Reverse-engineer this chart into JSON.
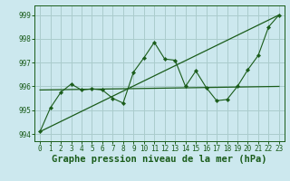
{
  "title": "Graphe pression niveau de la mer (hPa)",
  "bg_color": "#cce8ee",
  "grid_color": "#aacccc",
  "line_color": "#1a5c1a",
  "xlim": [
    -0.5,
    23.5
  ],
  "ylim": [
    993.7,
    999.4
  ],
  "yticks": [
    994,
    995,
    996,
    997,
    998,
    999
  ],
  "xticks": [
    0,
    1,
    2,
    3,
    4,
    5,
    6,
    7,
    8,
    9,
    10,
    11,
    12,
    13,
    14,
    15,
    16,
    17,
    18,
    19,
    20,
    21,
    22,
    23
  ],
  "xlabel_fontsize": 7.5,
  "tick_fontsize": 5.5,
  "hourly": [
    994.1,
    995.1,
    995.75,
    996.1,
    995.85,
    995.9,
    995.85,
    995.5,
    995.3,
    996.6,
    997.2,
    997.85,
    997.15,
    997.1,
    996.0,
    996.65,
    995.95,
    995.4,
    995.45,
    996.0,
    996.7,
    997.3,
    998.5,
    999.0
  ],
  "trend_y0": 994.1,
  "trend_y1": 999.0,
  "flat_y0": 995.85,
  "flat_y1": 996.0
}
